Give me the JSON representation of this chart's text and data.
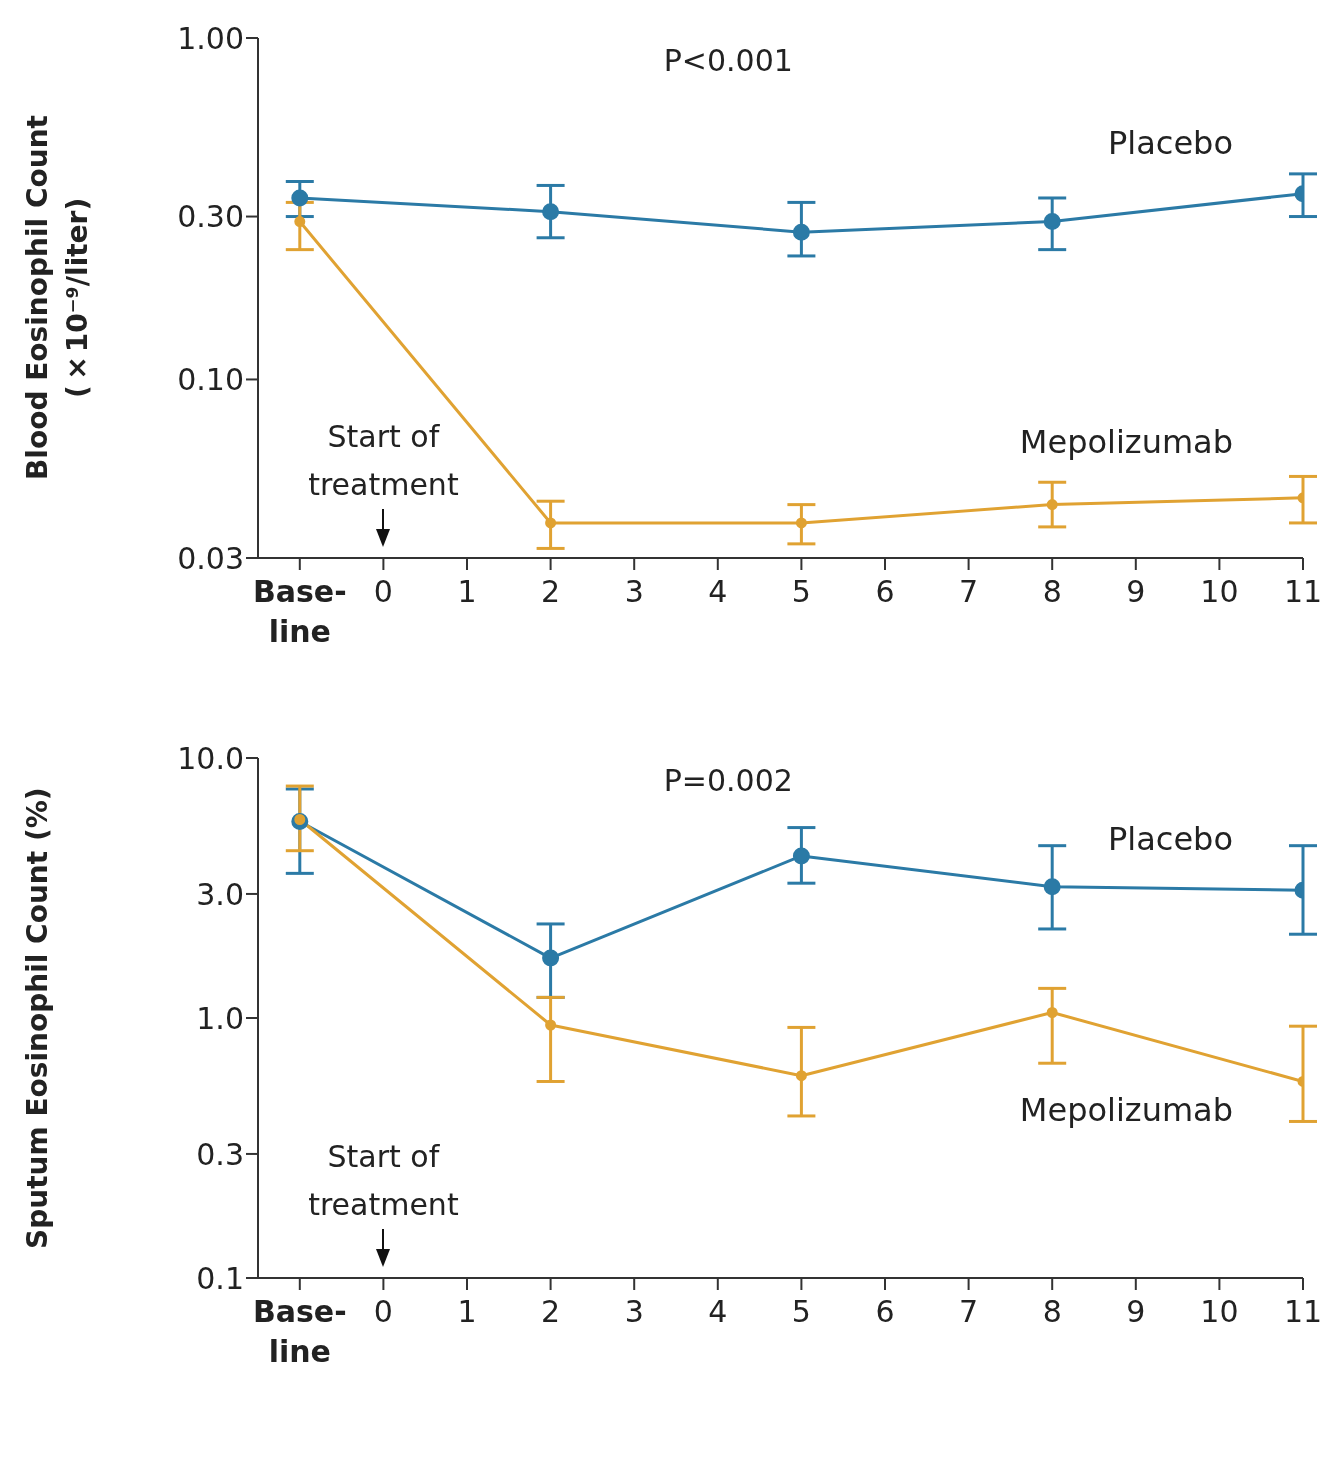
{
  "chart_data": [
    {
      "type": "line",
      "ylabel": "Blood Eosinophil Count (×10⁻⁹/liter)",
      "log": true,
      "grid": false,
      "legend": false,
      "marker": "circle",
      "line_style": "solid",
      "x": [
        -1,
        0,
        2,
        5,
        8,
        11
      ],
      "xlim": [
        -1.5,
        11
      ],
      "xticks": [
        {
          "value": -1,
          "label": "Base-line"
        },
        0,
        1,
        2,
        3,
        4,
        5,
        6,
        7,
        8,
        9,
        10,
        11
      ],
      "ylim": [
        0.03,
        1
      ],
      "yticks": [
        {
          "value": 0.03,
          "label": "0.03"
        },
        {
          "value": 0.1,
          "label": "0.10"
        },
        {
          "value": 0.3,
          "label": "0.30"
        },
        {
          "value": 1,
          "label": "1.00"
        }
      ],
      "series": [
        {
          "name": "Placebo",
          "color": "#2b7aa6",
          "values": [
            0.34,
            null,
            0.31,
            0.27,
            0.29,
            0.35
          ],
          "errors": [
            [
              0.3,
              0.38
            ],
            null,
            [
              0.26,
              0.37
            ],
            [
              0.23,
              0.33
            ],
            [
              0.24,
              0.34
            ],
            [
              0.3,
              0.4
            ]
          ]
        },
        {
          "name": "Mepolizumab",
          "color": "#e0a232",
          "values": [
            0.29,
            null,
            0.038,
            0.038,
            0.043,
            0.045
          ],
          "errors": [
            [
              0.24,
              0.33
            ],
            null,
            [
              0.032,
              0.044
            ],
            [
              0.033,
              0.043
            ],
            [
              0.037,
              0.05
            ],
            [
              0.038,
              0.052
            ]
          ]
        }
      ],
      "annotations": [
        "P<0.001",
        "Start of treatment"
      ]
    },
    {
      "type": "line",
      "ylabel": "Sputum Eosinophil Count (%)",
      "log": true,
      "grid": false,
      "legend": false,
      "marker": "circle",
      "line_style": "solid",
      "x": [
        -1,
        0,
        2,
        5,
        8,
        11
      ],
      "xlim": [
        -1.5,
        11
      ],
      "xticks": [
        {
          "value": -1,
          "label": "Base-line"
        },
        0,
        1,
        2,
        3,
        4,
        5,
        6,
        7,
        8,
        9,
        10,
        11
      ],
      "ylim": [
        0.1,
        10
      ],
      "yticks": [
        {
          "value": 0.1,
          "label": "0.1"
        },
        {
          "value": 0.3,
          "label": "0.3"
        },
        {
          "value": 1,
          "label": "1.0"
        },
        {
          "value": 3,
          "label": "3.0"
        },
        {
          "value": 10,
          "label": "10.0"
        }
      ],
      "series": [
        {
          "name": "Placebo",
          "color": "#2b7aa6",
          "values": [
            5.7,
            null,
            1.7,
            4.2,
            3.2,
            3.1
          ],
          "errors": [
            [
              3.6,
              7.6
            ],
            null,
            [
              1.2,
              2.3
            ],
            [
              3.3,
              5.4
            ],
            [
              2.2,
              4.6
            ],
            [
              2.1,
              4.6
            ]
          ]
        },
        {
          "name": "Mepolizumab",
          "color": "#e0a232",
          "values": [
            5.8,
            null,
            0.94,
            0.6,
            1.05,
            0.57
          ],
          "errors": [
            [
              4.4,
              7.8
            ],
            null,
            [
              0.57,
              1.2
            ],
            [
              0.42,
              0.92
            ],
            [
              0.67,
              1.3
            ],
            [
              0.4,
              0.93
            ]
          ]
        }
      ],
      "annotations": [
        "P=0.002",
        "Start of treatment"
      ]
    }
  ]
}
